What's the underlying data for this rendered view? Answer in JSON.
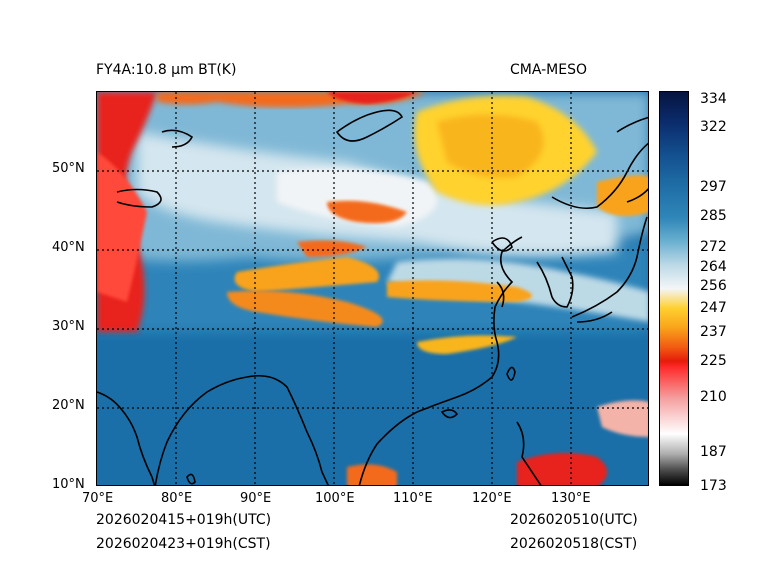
{
  "header": {
    "left_title": "FY4A:10.8 µm BT(K)",
    "right_title": "CMA-MESO"
  },
  "footer": {
    "init_utc": "2026020415+019h(UTC)",
    "init_cst": "2026020423+019h(CST)",
    "valid_utc": "2026020510(UTC)",
    "valid_cst": "2026020518(CST)"
  },
  "map": {
    "lon_labels": [
      "70°E",
      "80°E",
      "90°E",
      "100°E",
      "110°E",
      "120°E",
      "130°E"
    ],
    "lat_labels": [
      "50°N",
      "40°N",
      "30°N",
      "20°N",
      "10°N"
    ],
    "lon_range": [
      70,
      140
    ],
    "lat_range": [
      10,
      60
    ]
  },
  "colorbar": {
    "ticks": [
      "334",
      "322",
      "297",
      "285",
      "272",
      "264",
      "256",
      "247",
      "237",
      "225",
      "210",
      "187",
      "173"
    ],
    "tick_values": [
      334,
      322,
      297,
      285,
      272,
      264,
      256,
      247,
      237,
      225,
      210,
      187,
      173
    ]
  },
  "colors": {
    "cold_cloud_red": "#e8231b",
    "cloud_orange": "#f9a31a",
    "cloud_yellow": "#ffd22e",
    "clear_blue": "#1a6fa8",
    "mid_blue": "#5fa6cc",
    "pale": "#e6eef3"
  }
}
